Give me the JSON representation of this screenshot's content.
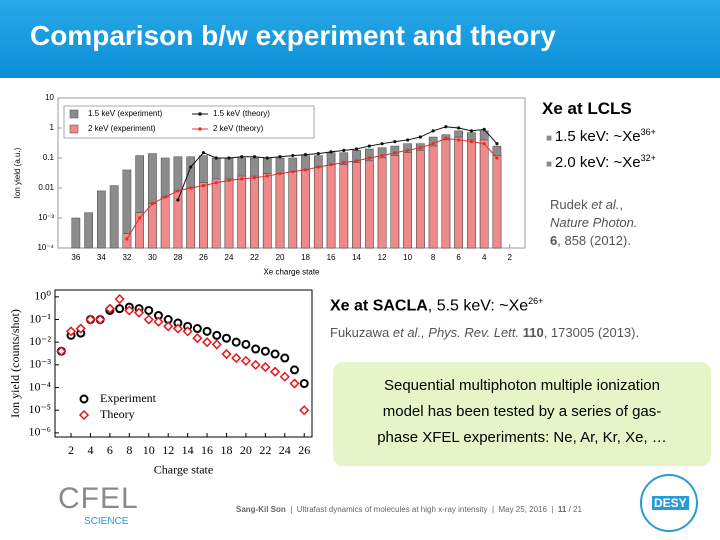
{
  "title": "Comparison b/w experiment and theory",
  "chart_data": [
    {
      "type": "bar",
      "xlabel": "Xe charge state",
      "ylabel": "Ion yield (a.u.)",
      "log_y": true,
      "legend": "upper left",
      "x": [
        36,
        35,
        34,
        33,
        32,
        31,
        30,
        29,
        28,
        27,
        26,
        25,
        24,
        23,
        22,
        21,
        20,
        19,
        18,
        17,
        16,
        15,
        14,
        13,
        12,
        11,
        10,
        9,
        8,
        7,
        6,
        5,
        4,
        3
      ],
      "xlim": [
        37.4,
        0.8
      ],
      "xticks": [
        36,
        34,
        32,
        30,
        28,
        26,
        24,
        22,
        20,
        18,
        16,
        14,
        12,
        10,
        8,
        6,
        4,
        2
      ],
      "ylim": [
        0.0001,
        10
      ],
      "yticks": [
        {
          "value": 0.0001,
          "label": "10⁻⁴"
        },
        {
          "value": 0.001,
          "label": "10⁻³"
        },
        0.01,
        0.1,
        1,
        10
      ],
      "series": [
        {
          "name": "1.5 keV (experiment)",
          "type": "bar",
          "color": "#8c8c8c",
          "values": [
            0.001,
            0.0015,
            0.008,
            0.012,
            0.04,
            0.12,
            0.14,
            0.1,
            0.11,
            0.11,
            0.12,
            0.1,
            0.1,
            0.1,
            0.1,
            0.1,
            0.1,
            0.1,
            0.12,
            0.12,
            0.15,
            0.15,
            0.18,
            0.2,
            0.22,
            0.25,
            0.3,
            0.3,
            0.5,
            0.6,
            0.8,
            0.7,
            0.8,
            0.25
          ]
        },
        {
          "name": "2 keV (experiment)",
          "type": "bar",
          "color": "#f08a8a",
          "values": [
            null,
            null,
            null,
            null,
            0.0003,
            0.0015,
            0.003,
            0.005,
            0.008,
            0.01,
            0.015,
            0.02,
            0.02,
            0.025,
            0.025,
            0.03,
            0.03,
            0.035,
            0.04,
            0.05,
            0.06,
            0.06,
            0.07,
            0.08,
            0.1,
            0.12,
            0.15,
            0.18,
            0.25,
            0.4,
            0.5,
            0.4,
            0.4,
            0.12
          ]
        },
        {
          "name": "1.5 keV (theory)",
          "type": "line",
          "color": "#111111",
          "values": [
            null,
            null,
            null,
            null,
            null,
            null,
            null,
            null,
            0.004,
            0.05,
            0.15,
            0.1,
            0.1,
            0.11,
            0.11,
            0.1,
            0.11,
            0.12,
            0.13,
            0.14,
            0.16,
            0.18,
            0.2,
            0.25,
            0.3,
            0.35,
            0.4,
            0.5,
            0.8,
            1.1,
            1.0,
            0.8,
            0.9,
            0.3
          ]
        },
        {
          "name": "2 keV (theory)",
          "type": "line",
          "color": "#e0302a",
          "values": [
            null,
            null,
            null,
            null,
            0.0002,
            0.001,
            0.003,
            0.005,
            0.008,
            0.01,
            0.012,
            0.015,
            0.018,
            0.02,
            0.022,
            0.025,
            0.03,
            0.035,
            0.04,
            0.05,
            0.06,
            0.07,
            0.08,
            0.1,
            0.12,
            0.15,
            0.18,
            0.22,
            0.3,
            0.45,
            0.4,
            0.35,
            0.3,
            0.1
          ]
        }
      ]
    },
    {
      "type": "scatter",
      "xlabel": "Charge state",
      "ylabel": "Ion yield (counts/shot)",
      "log_y": true,
      "legend": "lower left",
      "x": [
        1,
        2,
        3,
        4,
        5,
        6,
        7,
        8,
        9,
        10,
        11,
        12,
        13,
        14,
        15,
        16,
        17,
        18,
        19,
        20,
        21,
        22,
        23,
        24,
        25,
        26
      ],
      "xlim": [
        0.35,
        26.8
      ],
      "xticks": [
        2,
        4,
        6,
        8,
        10,
        12,
        14,
        16,
        18,
        20,
        22,
        24,
        26
      ],
      "ylim": [
        6.6e-07,
        2
      ],
      "yticks": [
        {
          "value": 1e-06,
          "label": "10⁻⁶"
        },
        {
          "value": 1e-05,
          "label": "10⁻⁵"
        },
        {
          "value": 0.0001,
          "label": "10⁻⁴"
        },
        {
          "value": 0.001,
          "label": "10⁻³"
        },
        {
          "value": 0.01,
          "label": "10⁻²"
        },
        {
          "value": 0.1,
          "label": "10⁻¹"
        },
        {
          "value": 1,
          "label": "10⁰"
        }
      ],
      "series": [
        {
          "name": "Experiment",
          "marker": "circle",
          "color": "#000000",
          "values": [
            0.004,
            0.02,
            0.025,
            0.1,
            0.1,
            0.25,
            0.3,
            0.35,
            0.3,
            0.25,
            0.15,
            0.1,
            0.07,
            0.05,
            0.04,
            0.03,
            0.02,
            0.015,
            0.01,
            0.008,
            0.005,
            0.004,
            0.003,
            0.002,
            0.0006,
            0.00015
          ]
        },
        {
          "name": "Theory",
          "marker": "diamond",
          "color": "#e8141b",
          "values": [
            0.004,
            0.03,
            0.04,
            0.1,
            0.1,
            0.3,
            0.8,
            0.25,
            0.2,
            0.1,
            0.08,
            0.05,
            0.04,
            0.03,
            0.015,
            0.01,
            0.008,
            0.003,
            0.002,
            0.0015,
            0.001,
            0.0008,
            0.0005,
            0.0003,
            0.00015,
            1e-05
          ]
        }
      ]
    }
  ],
  "lcls": {
    "heading": "Xe at LCLS",
    "bullets": [
      {
        "text": "1.5 keV: ~Xe",
        "sup": "36+"
      },
      {
        "text": "2.0 keV: ~Xe",
        "sup": "32+"
      }
    ],
    "ref": {
      "author": "Rudek ",
      "etal": "et al.",
      "journal": "Nature Photon.",
      "volume": "6",
      "rest": ", 858 (2012)."
    }
  },
  "sacla": {
    "heading": "Xe at SACLA",
    "text": ", 5.5 keV: ~Xe",
    "sup": "26+",
    "ref": {
      "author": "Fukuzawa ",
      "etal": "et al.",
      "journal": ", Phys. Rev. Lett.",
      "volume": " 110",
      "rest": ", 173005 (2013)."
    }
  },
  "box": {
    "lines": [
      "Sequential multiphoton multiple ionization",
      "model has been tested by a series of gas-",
      "phase XFEL experiments: Ne, Ar, Kr, Xe, …"
    ]
  },
  "footer": {
    "author": "Sang-Kil Son",
    "talk": "Ultrafast dynamics of molecules at high x-ray intensity",
    "date": "May 25, 2016",
    "page": "11",
    "total": "/ 21"
  },
  "logos": {
    "cfel": "CFEL",
    "cfel_sub": "SCIENCE",
    "desy": "DESY"
  }
}
